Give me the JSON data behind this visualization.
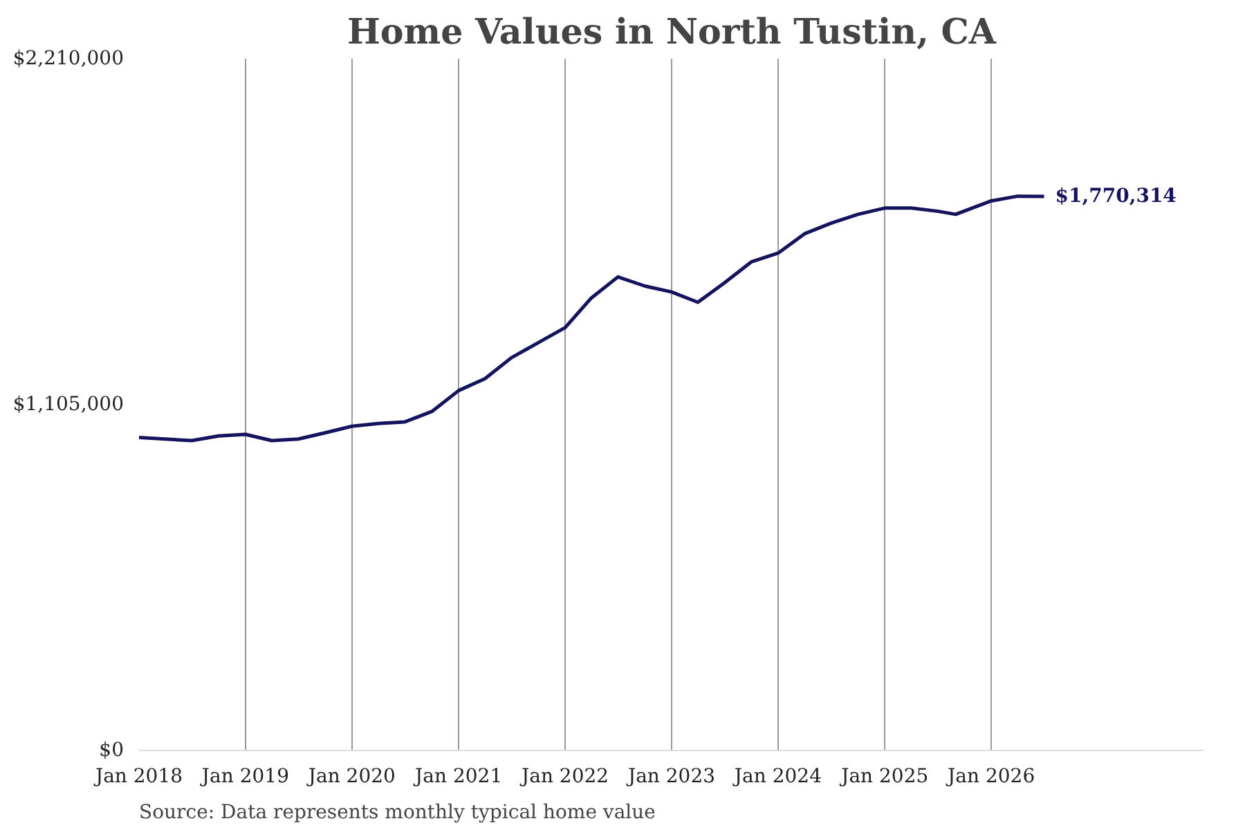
{
  "chart_data": {
    "type": "line",
    "title": "Home Values in North Tustin, CA",
    "x": [
      "2018-01",
      "2018-04",
      "2018-07",
      "2018-10",
      "2019-01",
      "2019-04",
      "2019-07",
      "2019-10",
      "2020-01",
      "2020-04",
      "2020-07",
      "2020-10",
      "2021-01",
      "2021-04",
      "2021-07",
      "2021-10",
      "2022-01",
      "2022-04",
      "2022-07",
      "2022-10",
      "2023-01",
      "2023-04",
      "2023-07",
      "2023-10",
      "2024-01",
      "2024-04",
      "2024-07",
      "2024-10",
      "2025-01",
      "2025-04",
      "2025-07",
      "2025-09",
      "2026-01",
      "2026-04",
      "2026-07"
    ],
    "series": [
      {
        "color": "#14145e",
        "values": [
          1000000,
          995000,
          990000,
          1005000,
          1010000,
          990000,
          995000,
          1015000,
          1036000,
          1045000,
          1050000,
          1083000,
          1150000,
          1188000,
          1255000,
          1303000,
          1351000,
          1446000,
          1513000,
          1484000,
          1465000,
          1432000,
          1494000,
          1561000,
          1589000,
          1651000,
          1685000,
          1713000,
          1733000,
          1733000,
          1723000,
          1713000,
          1756000,
          1771000,
          1770314
        ]
      }
    ],
    "xlim": [
      "2018-01",
      "2028-01"
    ],
    "ylim": [
      0,
      2210000
    ],
    "xticks": [
      {
        "value": "2018-01",
        "label": "Jan 2018"
      },
      {
        "value": "2019-01",
        "label": "Jan 2019"
      },
      {
        "value": "2020-01",
        "label": "Jan 2020"
      },
      {
        "value": "2021-01",
        "label": "Jan 2021"
      },
      {
        "value": "2022-01",
        "label": "Jan 2022"
      },
      {
        "value": "2023-01",
        "label": "Jan 2023"
      },
      {
        "value": "2024-01",
        "label": "Jan 2024"
      },
      {
        "value": "2025-01",
        "label": "Jan 2025"
      },
      {
        "value": "2026-01",
        "label": "Jan 2026"
      }
    ],
    "yticks": [
      {
        "value": 0,
        "label": "$0"
      },
      {
        "value": 1105000,
        "label": "$1,105,000"
      },
      {
        "value": 2210000,
        "label": "$2,210,000"
      }
    ],
    "grid": "x",
    "marker": "none",
    "line_style": "solid",
    "annotations": [
      {
        "text": "$1,770,314",
        "x": "2026-07",
        "y": 1770314
      },
      "Source: Data represents monthly typical home value"
    ]
  }
}
